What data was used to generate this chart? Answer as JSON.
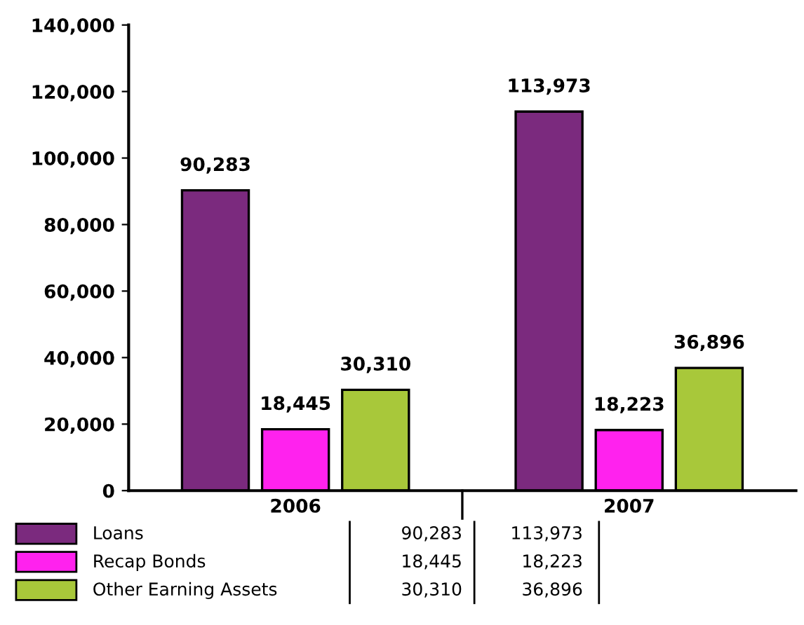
{
  "chart_data": {
    "type": "bar",
    "categories": [
      "2006",
      "2007"
    ],
    "series": [
      {
        "name": "Loans",
        "color": "#7b2a7e",
        "values": [
          90283,
          113973
        ],
        "value_labels": [
          "90,283",
          "113,973"
        ]
      },
      {
        "name": "Recap Bonds",
        "color": "#ff22ee",
        "values": [
          18445,
          18223
        ],
        "value_labels": [
          "18,445",
          "18,223"
        ]
      },
      {
        "name": "Other Earning Assets",
        "color": "#a8c83a",
        "values": [
          30310,
          36896
        ],
        "value_labels": [
          "30,310",
          "36,896"
        ]
      }
    ],
    "ylim": [
      0,
      140000
    ],
    "yticks": [
      {
        "value": 0,
        "label": "0"
      },
      {
        "value": 20000,
        "label": "20,000"
      },
      {
        "value": 40000,
        "label": "40,000"
      },
      {
        "value": 60000,
        "label": "60,000"
      },
      {
        "value": 80000,
        "label": "80,000"
      },
      {
        "value": 100000,
        "label": "100,000"
      },
      {
        "value": 120000,
        "label": "120,000"
      },
      {
        "value": 140000,
        "label": "140,000"
      }
    ],
    "grid": false,
    "legend": "bottom"
  }
}
